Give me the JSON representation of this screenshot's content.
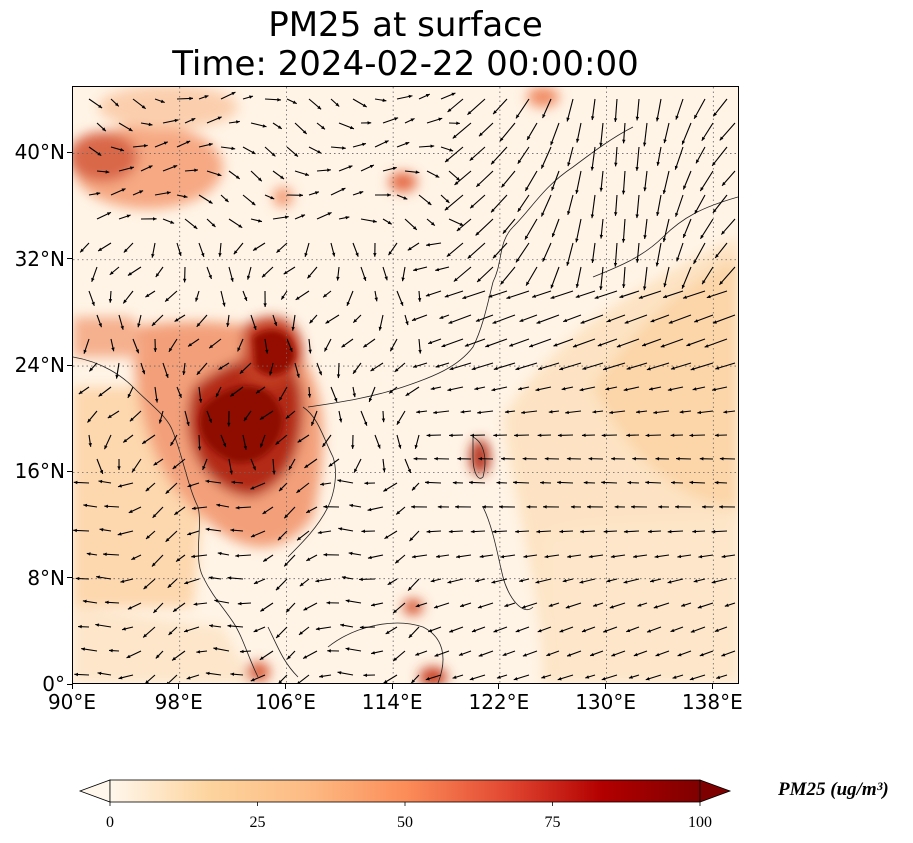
{
  "title": {
    "line1": "PM25 at surface",
    "line2": "Time: 2024-02-22 00:00:00"
  },
  "map": {
    "extent": {
      "lon": [
        90,
        140
      ],
      "lat": [
        0,
        45
      ]
    },
    "gridlines": "dotted",
    "coastlines": true,
    "wind_vectors": true,
    "lon_ticks": [
      {
        "value": 90,
        "label": "90°E"
      },
      {
        "value": 98,
        "label": "98°E"
      },
      {
        "value": 106,
        "label": "106°E"
      },
      {
        "value": 114,
        "label": "114°E"
      },
      {
        "value": 122,
        "label": "122°E"
      },
      {
        "value": 130,
        "label": "130°E"
      },
      {
        "value": 138,
        "label": "138°E"
      }
    ],
    "lat_ticks": [
      {
        "value": 0,
        "label": "0°"
      },
      {
        "value": 8,
        "label": "8°N"
      },
      {
        "value": 16,
        "label": "16°N"
      },
      {
        "value": 24,
        "label": "24°N"
      },
      {
        "value": 32,
        "label": "32°N"
      },
      {
        "value": 40,
        "label": "40°N"
      }
    ]
  },
  "colorbar": {
    "title": "PM25 (ug/m³)",
    "min": 0,
    "max": 100,
    "extend": "both",
    "colormap": "OrRd",
    "ticks": [
      {
        "value": 0,
        "label": "0"
      },
      {
        "value": 25,
        "label": "25"
      },
      {
        "value": 50,
        "label": "50"
      },
      {
        "value": 75,
        "label": "75"
      },
      {
        "value": 100,
        "label": "100"
      }
    ],
    "colors": [
      "#fff7ec",
      "#fdd49e",
      "#fdbb84",
      "#fc8d59",
      "#e34a33",
      "#b30000",
      "#7f0000"
    ]
  }
}
